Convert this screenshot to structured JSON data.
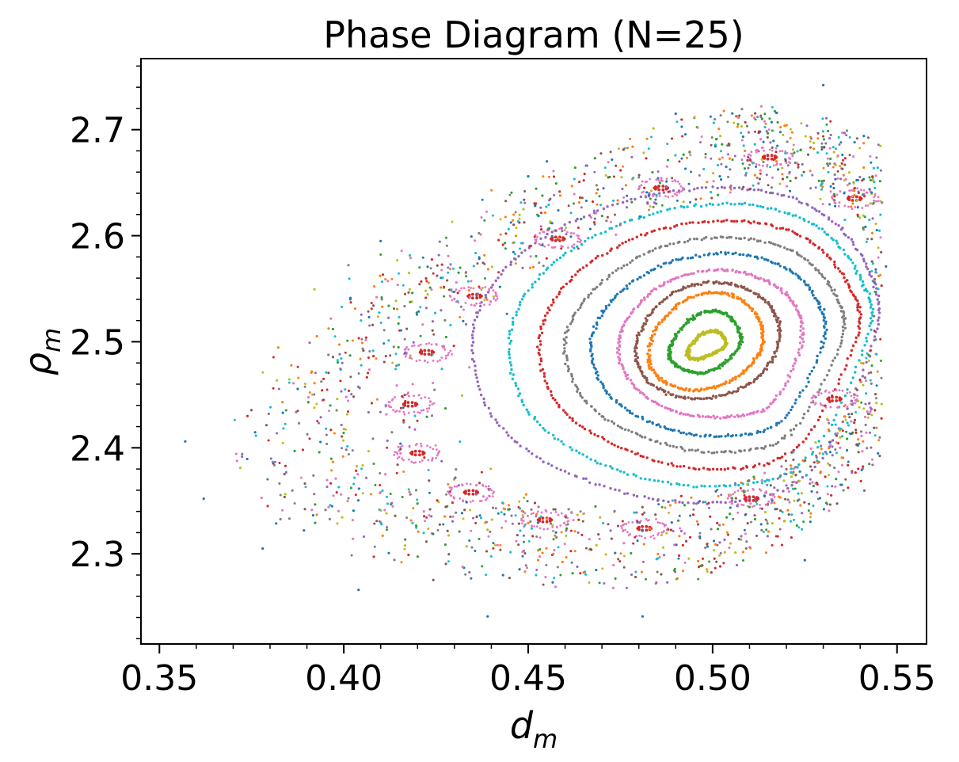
{
  "chart_data": {
    "type": "scatter",
    "title": "Phase Diagram (N=25)",
    "xlabel": "d",
    "xlabel_sub": "m",
    "ylabel": "ρ",
    "ylabel_sub": "m",
    "xlim": [
      0.345,
      0.558
    ],
    "ylim": [
      2.215,
      2.767
    ],
    "x_ticks": [
      0.35,
      0.4,
      0.45,
      0.5,
      0.55
    ],
    "x_tick_labels": [
      "0.35",
      "0.40",
      "0.45",
      "0.50",
      "0.55"
    ],
    "y_ticks": [
      2.3,
      2.4,
      2.5,
      2.6,
      2.7
    ],
    "y_tick_labels": [
      "2.3",
      "2.4",
      "2.5",
      "2.6",
      "2.7"
    ],
    "grid": false,
    "center": [
      0.498,
      2.496
    ],
    "palette": [
      "#1f77b4",
      "#ff7f0e",
      "#2ca02c",
      "#d62728",
      "#9467bd",
      "#8c564b",
      "#e377c2",
      "#7f7f7f",
      "#bcbd22",
      "#17becf"
    ],
    "series": [
      {
        "color": "#bcbd22",
        "shape": "closed",
        "points": [
          [
            0.5035,
            2.4965
          ],
          [
            0.5029,
            2.5048
          ],
          [
            0.501,
            2.5098
          ],
          [
            0.4985,
            2.5091
          ],
          [
            0.4958,
            2.5035
          ],
          [
            0.4937,
            2.4946
          ],
          [
            0.4932,
            2.4873
          ],
          [
            0.4948,
            2.4838
          ],
          [
            0.4976,
            2.4852
          ],
          [
            0.5007,
            2.4899
          ],
          [
            0.5035,
            2.4965
          ]
        ]
      },
      {
        "color": "#2ca02c",
        "shape": "closed",
        "points": [
          [
            0.5075,
            2.4971
          ],
          [
            0.5065,
            2.5152
          ],
          [
            0.5031,
            2.5265
          ],
          [
            0.4985,
            2.5285
          ],
          [
            0.4933,
            2.5191
          ],
          [
            0.489,
            2.4992
          ],
          [
            0.4884,
            2.4842
          ],
          [
            0.4917,
            2.4745
          ],
          [
            0.4968,
            2.4705
          ],
          [
            0.5024,
            2.4779
          ],
          [
            0.5075,
            2.4971
          ]
        ]
      },
      {
        "color": "#ff7f0e",
        "shape": "closed",
        "points": [
          [
            0.5135,
            2.498
          ],
          [
            0.5126,
            2.521
          ],
          [
            0.5074,
            2.54
          ],
          [
            0.5001,
            2.5464
          ],
          [
            0.4916,
            2.5369
          ],
          [
            0.485,
            2.5135
          ],
          [
            0.4826,
            2.4843
          ],
          [
            0.4862,
            2.464
          ],
          [
            0.4938,
            2.4546
          ],
          [
            0.5025,
            2.4597
          ],
          [
            0.5098,
            2.4759
          ],
          [
            0.5135,
            2.498
          ]
        ]
      },
      {
        "color": "#8c564b",
        "shape": "closed",
        "points": [
          [
            0.518,
            2.4995
          ],
          [
            0.5166,
            2.528
          ],
          [
            0.5103,
            2.548
          ],
          [
            0.5008,
            2.556
          ],
          [
            0.4905,
            2.548
          ],
          [
            0.4825,
            2.523
          ],
          [
            0.4792,
            2.4895
          ],
          [
            0.4828,
            2.462
          ],
          [
            0.492,
            2.447
          ],
          [
            0.503,
            2.45
          ],
          [
            0.5128,
            2.468
          ],
          [
            0.518,
            2.4995
          ]
        ]
      },
      {
        "color": "#e377c2",
        "shape": "closed",
        "points": [
          [
            0.524,
            2.499
          ],
          [
            0.5224,
            2.533
          ],
          [
            0.515,
            2.557
          ],
          [
            0.5028,
            2.568
          ],
          [
            0.489,
            2.559
          ],
          [
            0.4788,
            2.531
          ],
          [
            0.4745,
            2.494
          ],
          [
            0.479,
            2.457
          ],
          [
            0.49,
            2.434
          ],
          [
            0.5035,
            2.429
          ],
          [
            0.516,
            2.442
          ],
          [
            0.524,
            2.499
          ]
        ]
      },
      {
        "color": "#1f77b4",
        "shape": "closed",
        "points": [
          [
            0.53,
            2.501
          ],
          [
            0.5281,
            2.54
          ],
          [
            0.5195,
            2.57
          ],
          [
            0.5045,
            2.583
          ],
          [
            0.487,
            2.573
          ],
          [
            0.473,
            2.54
          ],
          [
            0.467,
            2.497
          ],
          [
            0.472,
            2.45
          ],
          [
            0.486,
            2.42
          ],
          [
            0.503,
            2.411
          ],
          [
            0.519,
            2.427
          ],
          [
            0.53,
            2.501
          ]
        ]
      },
      {
        "color": "#7f7f7f",
        "shape": "closed",
        "points": [
          [
            0.535,
            2.502
          ],
          [
            0.533,
            2.545
          ],
          [
            0.523,
            2.583
          ],
          [
            0.5055,
            2.598
          ],
          [
            0.485,
            2.588
          ],
          [
            0.468,
            2.55
          ],
          [
            0.46,
            2.499
          ],
          [
            0.4655,
            2.444
          ],
          [
            0.482,
            2.409
          ],
          [
            0.502,
            2.396
          ],
          [
            0.521,
            2.414
          ],
          [
            0.535,
            2.502
          ]
        ]
      },
      {
        "color": "#d62728",
        "shape": "closed",
        "points": [
          [
            0.539,
            2.503
          ],
          [
            0.537,
            2.552
          ],
          [
            0.526,
            2.596
          ],
          [
            0.507,
            2.614
          ],
          [
            0.483,
            2.603
          ],
          [
            0.462,
            2.561
          ],
          [
            0.453,
            2.501
          ],
          [
            0.459,
            2.437
          ],
          [
            0.478,
            2.396
          ],
          [
            0.501,
            2.38
          ],
          [
            0.523,
            2.401
          ],
          [
            0.539,
            2.503
          ]
        ]
      },
      {
        "color": "#17becf",
        "shape": "closed",
        "points": [
          [
            0.542,
            2.504
          ],
          [
            0.54,
            2.56
          ],
          [
            0.528,
            2.609
          ],
          [
            0.507,
            2.63
          ],
          [
            0.48,
            2.617
          ],
          [
            0.456,
            2.572
          ],
          [
            0.445,
            2.504
          ],
          [
            0.451,
            2.43
          ],
          [
            0.472,
            2.382
          ],
          [
            0.499,
            2.364
          ],
          [
            0.525,
            2.388
          ],
          [
            0.542,
            2.504
          ]
        ]
      },
      {
        "color": "#9467bd",
        "shape": "closed",
        "points": [
          [
            0.544,
            2.505
          ],
          [
            0.542,
            2.57
          ],
          [
            0.529,
            2.623
          ],
          [
            0.506,
            2.645
          ],
          [
            0.476,
            2.632
          ],
          [
            0.448,
            2.583
          ],
          [
            0.435,
            2.507
          ],
          [
            0.442,
            2.422
          ],
          [
            0.466,
            2.369
          ],
          [
            0.497,
            2.348
          ],
          [
            0.526,
            2.376
          ],
          [
            0.544,
            2.505
          ]
        ]
      },
      {
        "color": "#d62728",
        "shape": "islands",
        "points": [
          [
            0.5155,
            2.674
          ],
          [
            0.486,
            2.645
          ],
          [
            0.458,
            2.597
          ],
          [
            0.4355,
            2.543
          ],
          [
            0.4225,
            2.49
          ],
          [
            0.418,
            2.441
          ],
          [
            0.42,
            2.395
          ],
          [
            0.4345,
            2.358
          ],
          [
            0.4545,
            2.332
          ],
          [
            0.4815,
            2.324
          ],
          [
            0.5105,
            2.352
          ],
          [
            0.533,
            2.446
          ],
          [
            0.5385,
            2.635
          ]
        ]
      },
      {
        "color": "#mixed",
        "shape": "chaotic",
        "points": [
          [
            0.357,
            2.406
          ],
          [
            0.362,
            2.352
          ],
          [
            0.378,
            2.305
          ],
          [
            0.404,
            2.266
          ],
          [
            0.439,
            2.241
          ],
          [
            0.481,
            2.241
          ],
          [
            0.525,
            2.294
          ],
          [
            0.547,
            2.571
          ],
          [
            0.53,
            2.742
          ],
          [
            0.49,
            2.715
          ],
          [
            0.45,
            2.656
          ],
          [
            0.41,
            2.595
          ]
        ]
      }
    ]
  }
}
